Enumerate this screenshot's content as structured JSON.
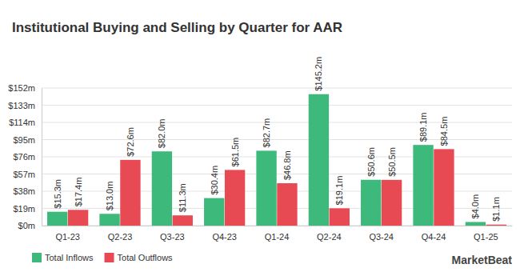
{
  "chart_data": {
    "type": "bar",
    "title": "Institutional Buying and Selling by Quarter for AAR",
    "categories": [
      "Q1-23",
      "Q2-23",
      "Q3-23",
      "Q4-23",
      "Q1-24",
      "Q2-24",
      "Q3-24",
      "Q4-24",
      "Q1-25"
    ],
    "series": [
      {
        "name": "Total Inflows",
        "color": "#3db97b",
        "values": [
          15.3,
          13.0,
          82.0,
          30.4,
          82.7,
          145.2,
          50.6,
          89.1,
          4.0
        ],
        "value_labels": [
          "$15.3m",
          "$13.0m",
          "$82.0m",
          "$30.4m",
          "$82.7m",
          "$145.2m",
          "$50.6m",
          "$89.1m",
          "$4.0m"
        ]
      },
      {
        "name": "Total Outflows",
        "color": "#e84a54",
        "values": [
          17.4,
          72.6,
          11.3,
          61.5,
          46.8,
          19.1,
          50.5,
          84.5,
          1.1
        ],
        "value_labels": [
          "$17.4m",
          "$72.6m",
          "$11.3m",
          "$61.5m",
          "$46.8m",
          "$19.1m",
          "$50.5m",
          "$84.5m",
          "$1.1m"
        ]
      }
    ],
    "ylim": [
      0,
      152
    ],
    "yticks": [
      {
        "value": 0,
        "label": "$0m"
      },
      {
        "value": 19,
        "label": "$19m"
      },
      {
        "value": 38,
        "label": "$38m"
      },
      {
        "value": 57,
        "label": "$57m"
      },
      {
        "value": 76,
        "label": "$76m"
      },
      {
        "value": 95,
        "label": "$95m"
      },
      {
        "value": 114,
        "label": "$114m"
      },
      {
        "value": 133,
        "label": "$133m"
      },
      {
        "value": 152,
        "label": "$152m"
      }
    ],
    "grid": true,
    "data_labels": true,
    "legend": "bottom-left",
    "annotations": [
      "MarketBeat"
    ]
  }
}
